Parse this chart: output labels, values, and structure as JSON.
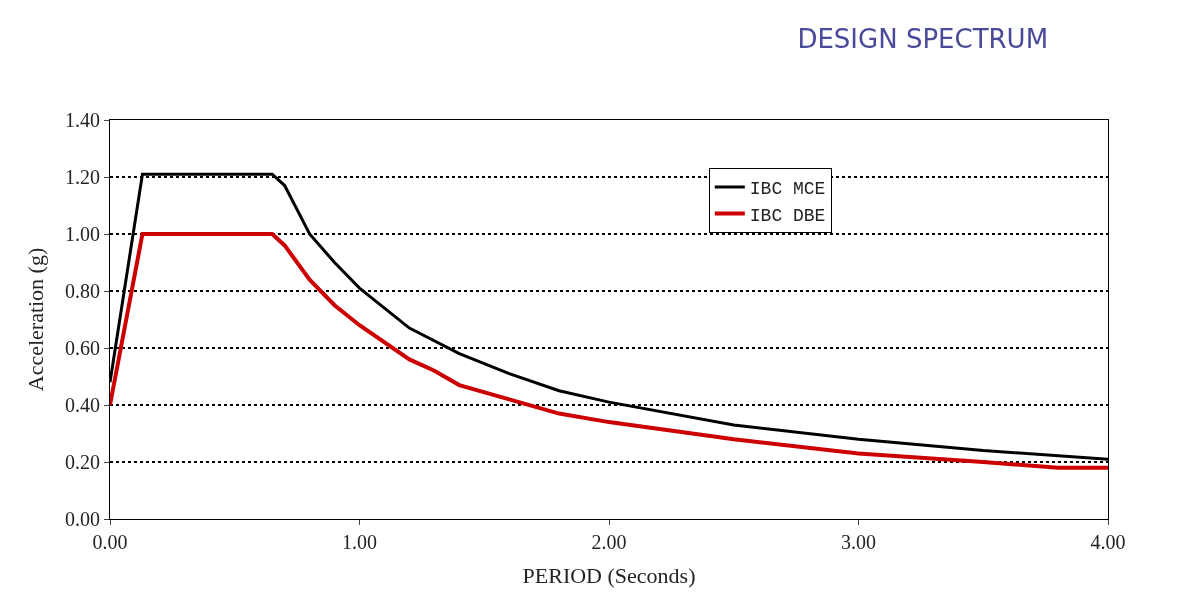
{
  "chart_data": {
    "type": "line",
    "title": "DESIGN SPECTRUM",
    "xlabel": "PERIOD (Seconds)",
    "ylabel": "Acceleration (g)",
    "series": [
      {
        "name": "IBC MCE",
        "color": "#000000",
        "x": [
          0,
          0.13,
          0.65,
          0.7,
          0.8,
          0.9,
          1.0,
          1.2,
          1.4,
          1.6,
          1.8,
          2.0,
          2.5,
          3.0,
          3.5,
          4.0
        ],
        "values": [
          0.48,
          1.21,
          1.21,
          1.17,
          1.0,
          0.9,
          0.81,
          0.67,
          0.58,
          0.51,
          0.45,
          0.41,
          0.33,
          0.28,
          0.24,
          0.21
        ]
      },
      {
        "name": "IBC DBE",
        "color": "#cc0000",
        "x": [
          0,
          0.13,
          0.65,
          0.7,
          0.8,
          0.9,
          1.0,
          1.2,
          1.3,
          1.4,
          1.6,
          1.8,
          2.0,
          2.5,
          3.0,
          3.5,
          3.8,
          4.0
        ],
        "values": [
          0.4,
          1.0,
          1.0,
          0.96,
          0.84,
          0.75,
          0.68,
          0.56,
          0.52,
          0.47,
          0.42,
          0.37,
          0.34,
          0.28,
          0.23,
          0.2,
          0.18,
          0.18
        ]
      }
    ],
    "xlim": [
      0,
      4
    ],
    "xticks": [
      {
        "value": 0,
        "label": "0.00"
      },
      {
        "value": 1,
        "label": "1.00"
      },
      {
        "value": 2,
        "label": "2.00"
      },
      {
        "value": 3,
        "label": "3.00"
      },
      {
        "value": 4,
        "label": "4.00"
      }
    ],
    "ylim": [
      0,
      1.4
    ],
    "yticks": [
      {
        "value": 0,
        "label": "0.00"
      },
      {
        "value": 0.2,
        "label": "0.20"
      },
      {
        "value": 0.4,
        "label": "0.40"
      },
      {
        "value": 0.6,
        "label": "0.60"
      },
      {
        "value": 0.8,
        "label": "0.80"
      },
      {
        "value": 1.0,
        "label": "1.00"
      },
      {
        "value": 1.2,
        "label": "1.20"
      },
      {
        "value": 1.4,
        "label": "1.40"
      }
    ],
    "grid": "y",
    "legend": "top right",
    "marker": "none",
    "line_style": "solid"
  }
}
